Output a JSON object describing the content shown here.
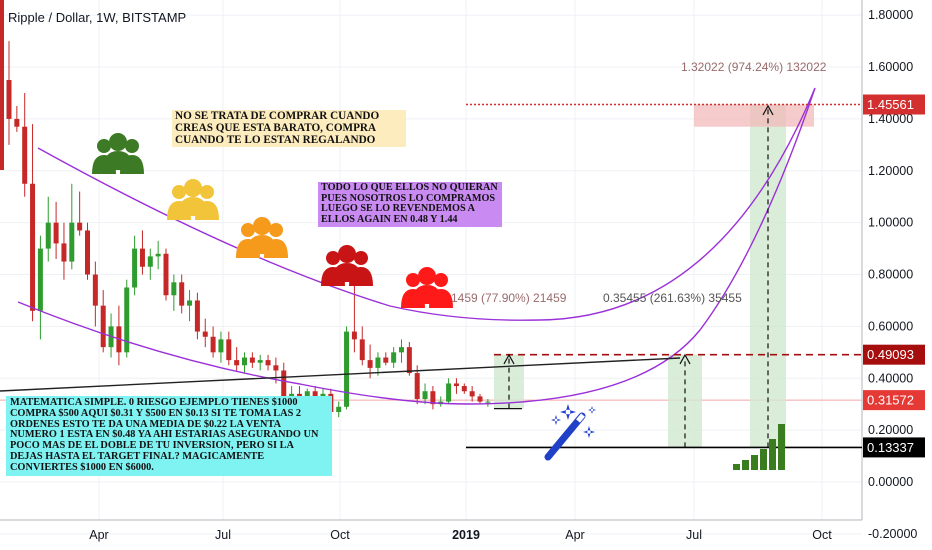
{
  "title": "Ripple / Dollar, 1W, BITSTAMP",
  "colors": {
    "up": "#26a69a",
    "up_body": "#2e9c2e",
    "down": "#c62828",
    "purple": "#9b30d9",
    "grid": "#eef1f5",
    "axis_text": "#131722",
    "label_red": "#a60d0d"
  },
  "notes": {
    "regalando": "NO SE TRATA DE COMPRAR CUANDO CREAS QUE ESTA BARATO, COMPRA CUANDO TE LO ESTAN REGALANDO",
    "quieran": "TODO LO QUE ELLOS NO QUIERAN PUES NOSOTROS LO COMPRAMOS LUEGO SE LO REVENDEMOS A ELLOS AGAIN EN 0.48 Y 1.44",
    "matematica": "MATEMATICA SIMPLE. 0 RIESGO EJEMPLO TIENES $1000 COMPRA $500 AQUI $0.31 Y $500 EN $0.13 SI TE TOMA LAS 2 ORDENES ESTO TE DA UNA MEDIA DE $0.22 LA VENTA NUMERO 1 ESTA EN $0.48 YA AHI ESTARIAS ASEGURANDO UN POCO MAS DE EL DOBLE DE TU INVERSION, PERO SI LA DEJAS HASTA EL TARGET FINAL? MAGICAMENTE CONVIERTES $1000 EN $6000."
  },
  "icons": [
    "crowd-green-icon",
    "crowd-yellow-icon",
    "crowd-orange-icon",
    "crowd-red-icon",
    "crowd-brightred-icon",
    "magic-wand-icon",
    "signal-bars-icon"
  ],
  "chart_data": {
    "type": "candlestick",
    "title": "Ripple / Dollar, 1W, BITSTAMP",
    "x_ticks": [
      "Apr",
      "Jul",
      "Oct",
      "2019",
      "Apr",
      "Jul",
      "Oct"
    ],
    "y_ticks": [
      "1.80000",
      "1.60000",
      "1.40000",
      "1.20000",
      "1.00000",
      "0.80000",
      "0.60000",
      "0.40000",
      "0.20000",
      "0.00000",
      "-0.20000"
    ],
    "ylim": [
      -0.3,
      1.82
    ],
    "price_labels": [
      {
        "value": 1.45561,
        "text": "1.45561",
        "color": "#d32f2f"
      },
      {
        "value": 0.49093,
        "text": "0.49093",
        "color": "#a60d0d"
      },
      {
        "value": 0.31572,
        "text": "0.31572",
        "color": "#e53935"
      },
      {
        "value": 0.13337,
        "text": "0.13337",
        "color": "#000000"
      }
    ],
    "measurements": [
      {
        "text": "1.32022 (974.24%) 132022"
      },
      {
        "text": "0.35455 (261.63%) 35455"
      },
      {
        "text": "1459 (77.90%) 21459"
      }
    ],
    "candles": [
      [
        1.55,
        1.7,
        1.3,
        1.4
      ],
      [
        1.4,
        1.45,
        1.35,
        1.37
      ],
      [
        1.37,
        1.5,
        1.1,
        1.15
      ],
      [
        1.15,
        1.38,
        0.62,
        0.66
      ],
      [
        0.66,
        0.95,
        0.55,
        0.9
      ],
      [
        0.9,
        1.1,
        0.85,
        1.0
      ],
      [
        1.0,
        1.08,
        0.86,
        0.92
      ],
      [
        0.92,
        1.0,
        0.78,
        0.85
      ],
      [
        0.85,
        1.15,
        0.82,
        1.0
      ],
      [
        1.0,
        1.12,
        0.95,
        0.97
      ],
      [
        0.97,
        1.0,
        0.78,
        0.8
      ],
      [
        0.8,
        0.85,
        0.6,
        0.68
      ],
      [
        0.68,
        0.74,
        0.5,
        0.52
      ],
      [
        0.52,
        0.65,
        0.48,
        0.6
      ],
      [
        0.6,
        0.68,
        0.45,
        0.5
      ],
      [
        0.5,
        0.78,
        0.48,
        0.75
      ],
      [
        0.75,
        0.95,
        0.72,
        0.9
      ],
      [
        0.9,
        0.97,
        0.8,
        0.83
      ],
      [
        0.83,
        0.9,
        0.78,
        0.87
      ],
      [
        0.87,
        0.93,
        0.82,
        0.88
      ],
      [
        0.88,
        0.9,
        0.7,
        0.72
      ],
      [
        0.72,
        0.8,
        0.66,
        0.77
      ],
      [
        0.77,
        0.8,
        0.65,
        0.68
      ],
      [
        0.68,
        0.74,
        0.62,
        0.7
      ],
      [
        0.7,
        0.73,
        0.55,
        0.58
      ],
      [
        0.58,
        0.63,
        0.52,
        0.56
      ],
      [
        0.56,
        0.6,
        0.48,
        0.5
      ],
      [
        0.5,
        0.58,
        0.46,
        0.55
      ],
      [
        0.55,
        0.58,
        0.45,
        0.47
      ],
      [
        0.47,
        0.52,
        0.43,
        0.45
      ],
      [
        0.45,
        0.5,
        0.42,
        0.48
      ],
      [
        0.48,
        0.5,
        0.44,
        0.46
      ],
      [
        0.46,
        0.49,
        0.43,
        0.47
      ],
      [
        0.47,
        0.49,
        0.43,
        0.45
      ],
      [
        0.45,
        0.48,
        0.38,
        0.43
      ],
      [
        0.43,
        0.46,
        0.28,
        0.3
      ],
      [
        0.3,
        0.37,
        0.27,
        0.34
      ],
      [
        0.34,
        0.37,
        0.31,
        0.33
      ],
      [
        0.33,
        0.36,
        0.3,
        0.35
      ],
      [
        0.35,
        0.37,
        0.3,
        0.32
      ],
      [
        0.32,
        0.36,
        0.3,
        0.34
      ],
      [
        0.34,
        0.36,
        0.25,
        0.27
      ],
      [
        0.27,
        0.31,
        0.25,
        0.29
      ],
      [
        0.29,
        0.6,
        0.28,
        0.58
      ],
      [
        0.58,
        0.78,
        0.5,
        0.55
      ],
      [
        0.55,
        0.6,
        0.45,
        0.47
      ],
      [
        0.47,
        0.53,
        0.4,
        0.44
      ],
      [
        0.44,
        0.5,
        0.41,
        0.48
      ],
      [
        0.48,
        0.5,
        0.45,
        0.46
      ],
      [
        0.46,
        0.52,
        0.44,
        0.5
      ],
      [
        0.5,
        0.55,
        0.46,
        0.52
      ],
      [
        0.52,
        0.54,
        0.41,
        0.42
      ],
      [
        0.42,
        0.45,
        0.3,
        0.32
      ],
      [
        0.32,
        0.38,
        0.3,
        0.35
      ],
      [
        0.35,
        0.37,
        0.28,
        0.3
      ],
      [
        0.3,
        0.33,
        0.29,
        0.31
      ],
      [
        0.31,
        0.4,
        0.3,
        0.38
      ],
      [
        0.38,
        0.4,
        0.34,
        0.37
      ],
      [
        0.37,
        0.38,
        0.34,
        0.35
      ],
      [
        0.35,
        0.37,
        0.31,
        0.33
      ],
      [
        0.33,
        0.34,
        0.3,
        0.31
      ],
      [
        0.31,
        0.32,
        0.29,
        0.31
      ]
    ]
  }
}
